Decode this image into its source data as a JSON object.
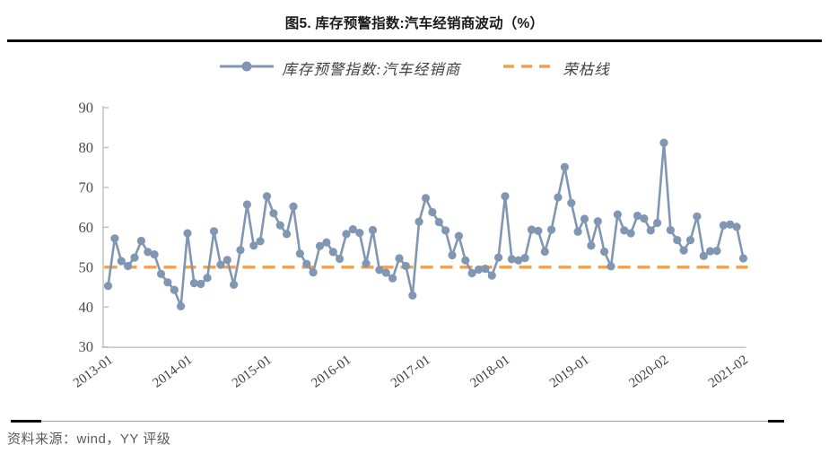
{
  "title": "图5. 库存预警指数:汽车经销商波动（%）",
  "source_note": "资料来源：wind，YY 评级",
  "colors": {
    "series_line": "#8096B2",
    "break_even_line": "#F2A050",
    "axis": "#BFBFBF",
    "tick_label": "#4d4d4d",
    "title_rule": "#000000",
    "source_text": "#595959"
  },
  "legend": {
    "items": [
      {
        "label": "库存预警指数:汽车经销商",
        "swatch": "line-with-marker",
        "color": "#8096B2"
      },
      {
        "label": "荣枯线",
        "swatch": "dashed-line",
        "color": "#F2A050"
      }
    ]
  },
  "chart_data": {
    "type": "line",
    "title": "图5. 库存预警指数:汽车经销商波动（%）",
    "xlabel": "",
    "ylabel": "",
    "ylim": [
      30,
      90
    ],
    "y_ticks": [
      30,
      40,
      50,
      60,
      70,
      80,
      90
    ],
    "grid": false,
    "legend_position": "top",
    "x_tick_positions": [
      0,
      12,
      24,
      36,
      48,
      60,
      72,
      84,
      96
    ],
    "x_tick_labels": [
      "2013-01",
      "2014-01",
      "2015-01",
      "2016-01",
      "2017-01",
      "2018-01",
      "2019-01",
      "2020-02",
      "2021-02"
    ],
    "series": [
      {
        "name": "库存预警指数:汽车经销商",
        "style": "line-with-dot-markers",
        "values": [
          45.3,
          57.2,
          51.5,
          50.3,
          52.4,
          56.6,
          53.8,
          53.2,
          48.3,
          46.2,
          44.3,
          40.2,
          58.5,
          46.0,
          45.8,
          47.3,
          59.0,
          50.6,
          51.8,
          45.6,
          54.3,
          65.7,
          55.4,
          56.5,
          67.8,
          63.5,
          60.5,
          58.3,
          65.2,
          53.4,
          50.8,
          48.7,
          55.3,
          56.2,
          53.8,
          52.1,
          58.3,
          59.5,
          58.6,
          50.9,
          59.3,
          49.3,
          48.6,
          47.2,
          52.2,
          50.3,
          42.9,
          61.4,
          67.3,
          63.8,
          61.3,
          59.2,
          53.0,
          57.8,
          51.7,
          48.5,
          49.4,
          49.6,
          47.9,
          52.4,
          67.8,
          52.0,
          51.7,
          52.3,
          59.4,
          59.1,
          53.9,
          59.4,
          67.5,
          75.1,
          66.1,
          58.9,
          62.1,
          55.4,
          61.5,
          53.9,
          50.2,
          63.2,
          59.2,
          58.5,
          62.9,
          62.2,
          59.2,
          61.1,
          81.2,
          59.3,
          56.8,
          54.2,
          56.8,
          62.7,
          52.8,
          54.0,
          54.1,
          60.5,
          60.7,
          60.1,
          52.2
        ]
      },
      {
        "name": "荣枯线",
        "style": "dashed-constant",
        "constant_value": 50
      }
    ]
  }
}
